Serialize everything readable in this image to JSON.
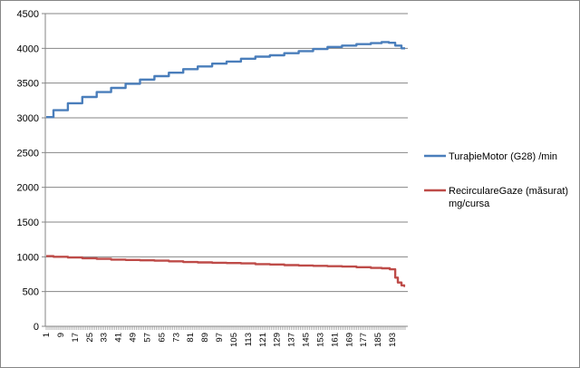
{
  "chart_data": {
    "type": "line",
    "title": "",
    "xlabel": "",
    "ylabel": "",
    "ylim": [
      0,
      4500
    ],
    "yticks": [
      0,
      500,
      1000,
      1500,
      2000,
      2500,
      3000,
      3500,
      4000,
      4500
    ],
    "x_range": [
      1,
      200
    ],
    "xticks": [
      1,
      9,
      17,
      25,
      33,
      41,
      49,
      57,
      65,
      73,
      81,
      89,
      97,
      105,
      113,
      121,
      129,
      137,
      145,
      153,
      161,
      169,
      177,
      185,
      193
    ],
    "grid": "horizontal major gridlines",
    "legend_position": "right",
    "series": [
      {
        "name": "TuraþieMotor (G28)  /min",
        "color": "#4a7ebb",
        "x": [
          1,
          9,
          17,
          25,
          33,
          41,
          49,
          57,
          65,
          73,
          81,
          89,
          97,
          105,
          113,
          121,
          129,
          137,
          145,
          153,
          161,
          169,
          177,
          185,
          189,
          193,
          196,
          200
        ],
        "y": [
          3010,
          3110,
          3210,
          3300,
          3370,
          3430,
          3490,
          3550,
          3600,
          3650,
          3700,
          3740,
          3780,
          3810,
          3850,
          3880,
          3900,
          3930,
          3960,
          3990,
          4020,
          4040,
          4060,
          4075,
          4090,
          4080,
          4040,
          4000
        ]
      },
      {
        "name": "RecirculareGaze (măsurat) mg/cursa",
        "color": "#be4b48",
        "x": [
          1,
          9,
          17,
          25,
          33,
          41,
          49,
          57,
          65,
          73,
          81,
          89,
          97,
          105,
          113,
          121,
          129,
          137,
          145,
          153,
          161,
          169,
          177,
          185,
          189,
          194,
          195,
          197,
          199,
          200
        ],
        "y": [
          1010,
          1000,
          990,
          980,
          970,
          960,
          955,
          950,
          945,
          935,
          925,
          920,
          915,
          910,
          905,
          895,
          890,
          880,
          875,
          870,
          865,
          860,
          850,
          840,
          835,
          820,
          700,
          630,
          590,
          580
        ]
      }
    ]
  }
}
